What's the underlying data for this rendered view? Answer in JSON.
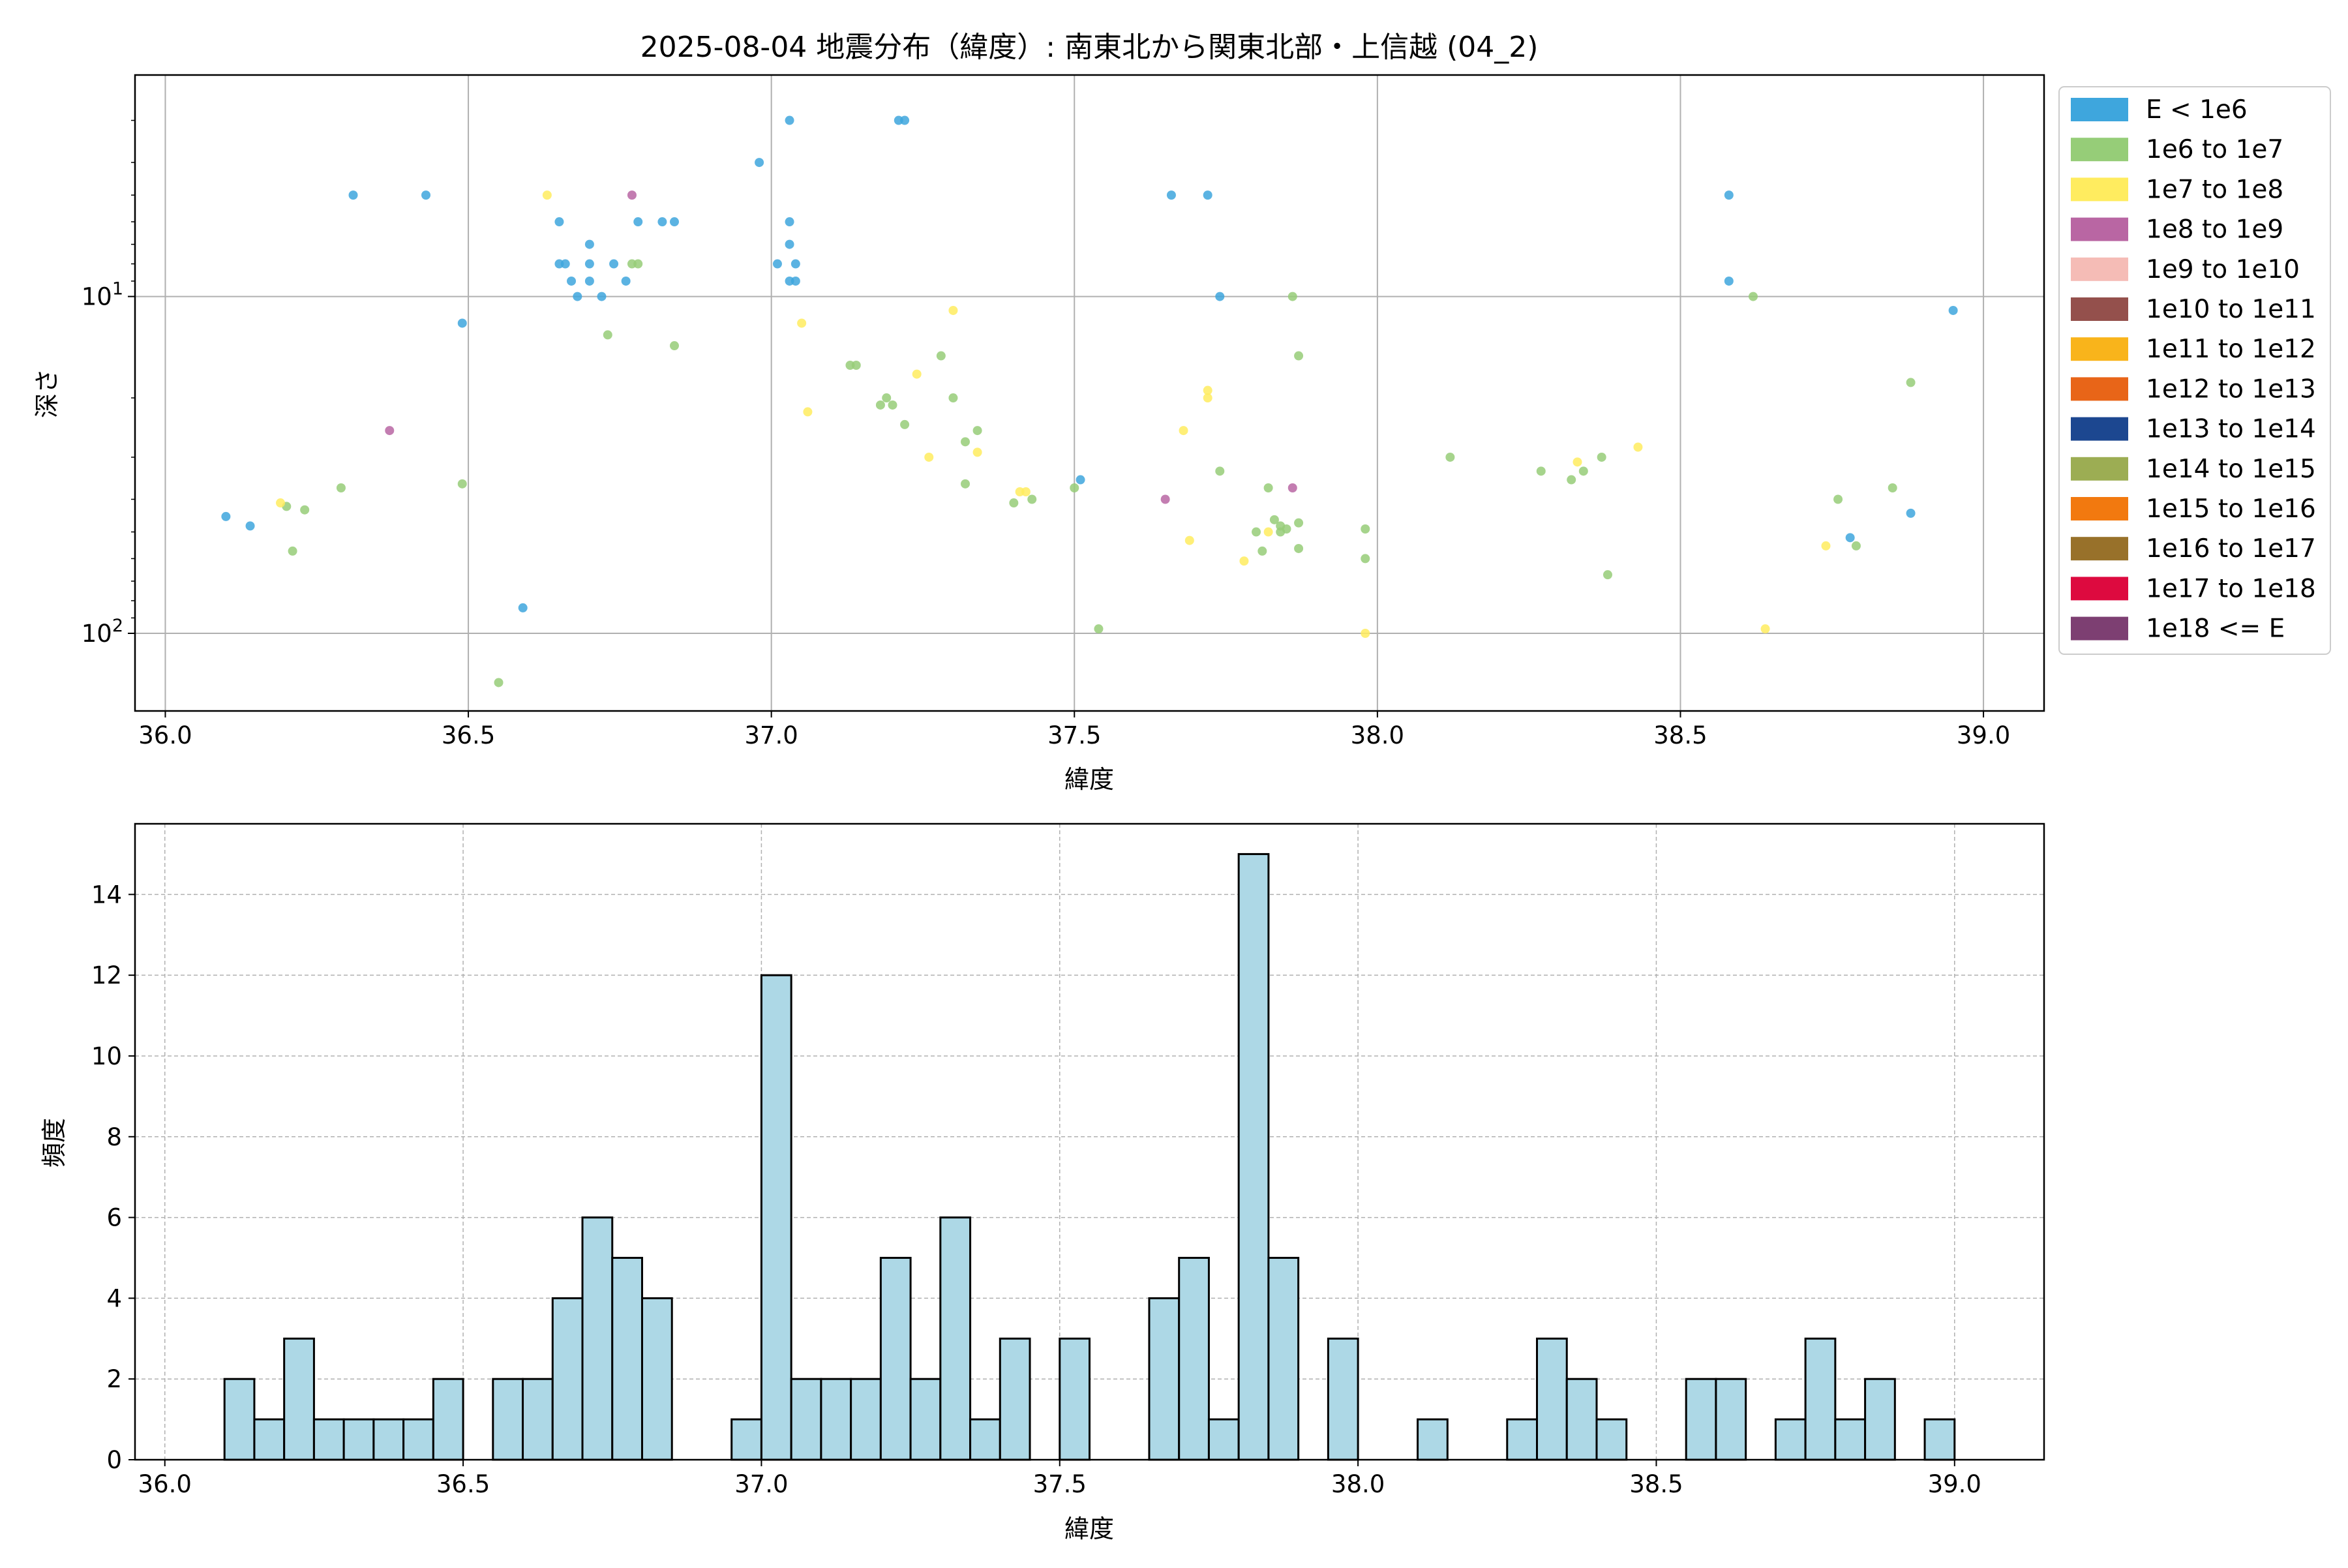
{
  "title": "2025-08-04 地震分布（緯度）: 南東北から関東北部・上信越 (04_2)",
  "chart_data": [
    {
      "type": "scatter",
      "xlabel": "緯度",
      "ylabel": "深さ",
      "xlim": [
        35.95,
        39.1
      ],
      "ylim_depth": [
        170,
        2.2
      ],
      "y_scale": "log",
      "y_inverted": true,
      "x_ticks": [
        "36.0",
        "36.5",
        "37.0",
        "37.5",
        "38.0",
        "38.5",
        "39.0"
      ],
      "y_ticks": [
        {
          "value": 10,
          "label": "10^1"
        },
        {
          "value": 100,
          "label": "10^2"
        }
      ],
      "grid": true,
      "legend_position": "outside-right",
      "legend": [
        {
          "label": "E < 1e6",
          "color": "#3ea6dd"
        },
        {
          "label": "1e6 to 1e7",
          "color": "#96cd78"
        },
        {
          "label": "1e7 to 1e8",
          "color": "#ffec5f"
        },
        {
          "label": "1e8 to 1e9",
          "color": "#b966a3"
        },
        {
          "label": "1e9 to 1e10",
          "color": "#f5bcb6"
        },
        {
          "label": "1e10 to 1e11",
          "color": "#94504c"
        },
        {
          "label": "1e11 to 1e12",
          "color": "#f9b41b"
        },
        {
          "label": "1e12 to 1e13",
          "color": "#e86518"
        },
        {
          "label": "1e13 to 1e14",
          "color": "#1c4790"
        },
        {
          "label": "1e14 to 1e15",
          "color": "#9cad53"
        },
        {
          "label": "1e15 to 1e16",
          "color": "#f2790f"
        },
        {
          "label": "1e16 to 1e17",
          "color": "#98712a"
        },
        {
          "label": "1e17 to 1e18",
          "color": "#dd0a3f"
        },
        {
          "label": "1e18 <= E",
          "color": "#7d3f72"
        }
      ],
      "points": [
        {
          "lat": 36.1,
          "depth": 45,
          "cls": 0
        },
        {
          "lat": 36.14,
          "depth": 48,
          "cls": 0
        },
        {
          "lat": 36.31,
          "depth": 5,
          "cls": 0
        },
        {
          "lat": 36.43,
          "depth": 5,
          "cls": 0
        },
        {
          "lat": 36.49,
          "depth": 12,
          "cls": 0
        },
        {
          "lat": 36.59,
          "depth": 84,
          "cls": 0
        },
        {
          "lat": 36.65,
          "depth": 6,
          "cls": 0
        },
        {
          "lat": 36.65,
          "depth": 8,
          "cls": 0
        },
        {
          "lat": 36.66,
          "depth": 8,
          "cls": 0
        },
        {
          "lat": 36.67,
          "depth": 9,
          "cls": 0
        },
        {
          "lat": 36.68,
          "depth": 10,
          "cls": 0
        },
        {
          "lat": 36.7,
          "depth": 7,
          "cls": 0
        },
        {
          "lat": 36.7,
          "depth": 8,
          "cls": 0
        },
        {
          "lat": 36.7,
          "depth": 9,
          "cls": 0
        },
        {
          "lat": 36.72,
          "depth": 10,
          "cls": 0
        },
        {
          "lat": 36.74,
          "depth": 8,
          "cls": 0
        },
        {
          "lat": 36.76,
          "depth": 9,
          "cls": 0
        },
        {
          "lat": 36.78,
          "depth": 6,
          "cls": 0
        },
        {
          "lat": 36.82,
          "depth": 6,
          "cls": 0
        },
        {
          "lat": 36.84,
          "depth": 6,
          "cls": 0
        },
        {
          "lat": 36.98,
          "depth": 4,
          "cls": 0
        },
        {
          "lat": 37.01,
          "depth": 8,
          "cls": 0
        },
        {
          "lat": 37.03,
          "depth": 3,
          "cls": 0
        },
        {
          "lat": 37.03,
          "depth": 6,
          "cls": 0
        },
        {
          "lat": 37.03,
          "depth": 7,
          "cls": 0
        },
        {
          "lat": 37.03,
          "depth": 9,
          "cls": 0
        },
        {
          "lat": 37.04,
          "depth": 8,
          "cls": 0
        },
        {
          "lat": 37.04,
          "depth": 9,
          "cls": 0
        },
        {
          "lat": 37.21,
          "depth": 3,
          "cls": 0
        },
        {
          "lat": 37.22,
          "depth": 3,
          "cls": 0
        },
        {
          "lat": 37.51,
          "depth": 35,
          "cls": 0
        },
        {
          "lat": 37.66,
          "depth": 5,
          "cls": 0
        },
        {
          "lat": 37.72,
          "depth": 5,
          "cls": 0
        },
        {
          "lat": 37.74,
          "depth": 10,
          "cls": 0
        },
        {
          "lat": 38.58,
          "depth": 5,
          "cls": 0
        },
        {
          "lat": 38.58,
          "depth": 9,
          "cls": 0
        },
        {
          "lat": 38.78,
          "depth": 52,
          "cls": 0
        },
        {
          "lat": 38.88,
          "depth": 44,
          "cls": 0
        },
        {
          "lat": 38.95,
          "depth": 11,
          "cls": 0
        },
        {
          "lat": 36.2,
          "depth": 42,
          "cls": 1
        },
        {
          "lat": 36.21,
          "depth": 57,
          "cls": 1
        },
        {
          "lat": 36.23,
          "depth": 43,
          "cls": 1
        },
        {
          "lat": 36.29,
          "depth": 37,
          "cls": 1
        },
        {
          "lat": 36.49,
          "depth": 36,
          "cls": 1
        },
        {
          "lat": 36.55,
          "depth": 140,
          "cls": 1
        },
        {
          "lat": 36.73,
          "depth": 13,
          "cls": 1
        },
        {
          "lat": 36.77,
          "depth": 8,
          "cls": 1
        },
        {
          "lat": 36.78,
          "depth": 8,
          "cls": 1
        },
        {
          "lat": 36.84,
          "depth": 14,
          "cls": 1
        },
        {
          "lat": 37.13,
          "depth": 16,
          "cls": 1
        },
        {
          "lat": 37.14,
          "depth": 16,
          "cls": 1
        },
        {
          "lat": 37.18,
          "depth": 21,
          "cls": 1
        },
        {
          "lat": 37.19,
          "depth": 20,
          "cls": 1
        },
        {
          "lat": 37.2,
          "depth": 21,
          "cls": 1
        },
        {
          "lat": 37.22,
          "depth": 24,
          "cls": 1
        },
        {
          "lat": 37.28,
          "depth": 15,
          "cls": 1
        },
        {
          "lat": 37.3,
          "depth": 20,
          "cls": 1
        },
        {
          "lat": 37.32,
          "depth": 27,
          "cls": 1
        },
        {
          "lat": 37.32,
          "depth": 36,
          "cls": 1
        },
        {
          "lat": 37.34,
          "depth": 25,
          "cls": 1
        },
        {
          "lat": 37.4,
          "depth": 41,
          "cls": 1
        },
        {
          "lat": 37.43,
          "depth": 40,
          "cls": 1
        },
        {
          "lat": 37.5,
          "depth": 37,
          "cls": 1
        },
        {
          "lat": 37.54,
          "depth": 97,
          "cls": 1
        },
        {
          "lat": 37.74,
          "depth": 33,
          "cls": 1
        },
        {
          "lat": 37.8,
          "depth": 50,
          "cls": 1
        },
        {
          "lat": 37.81,
          "depth": 57,
          "cls": 1
        },
        {
          "lat": 37.82,
          "depth": 37,
          "cls": 1
        },
        {
          "lat": 37.83,
          "depth": 46,
          "cls": 1
        },
        {
          "lat": 37.84,
          "depth": 50,
          "cls": 1
        },
        {
          "lat": 37.84,
          "depth": 48,
          "cls": 1
        },
        {
          "lat": 37.85,
          "depth": 49,
          "cls": 1
        },
        {
          "lat": 37.86,
          "depth": 10,
          "cls": 1
        },
        {
          "lat": 37.87,
          "depth": 15,
          "cls": 1
        },
        {
          "lat": 37.87,
          "depth": 47,
          "cls": 1
        },
        {
          "lat": 37.87,
          "depth": 56,
          "cls": 1
        },
        {
          "lat": 37.98,
          "depth": 49,
          "cls": 1
        },
        {
          "lat": 37.98,
          "depth": 60,
          "cls": 1
        },
        {
          "lat": 38.12,
          "depth": 30,
          "cls": 1
        },
        {
          "lat": 38.27,
          "depth": 33,
          "cls": 1
        },
        {
          "lat": 38.32,
          "depth": 35,
          "cls": 1
        },
        {
          "lat": 38.34,
          "depth": 33,
          "cls": 1
        },
        {
          "lat": 38.37,
          "depth": 30,
          "cls": 1
        },
        {
          "lat": 38.38,
          "depth": 67,
          "cls": 1
        },
        {
          "lat": 38.62,
          "depth": 10,
          "cls": 1
        },
        {
          "lat": 38.76,
          "depth": 40,
          "cls": 1
        },
        {
          "lat": 38.79,
          "depth": 55,
          "cls": 1
        },
        {
          "lat": 38.85,
          "depth": 37,
          "cls": 1
        },
        {
          "lat": 38.88,
          "depth": 18,
          "cls": 1
        },
        {
          "lat": 36.19,
          "depth": 41,
          "cls": 2
        },
        {
          "lat": 36.63,
          "depth": 5,
          "cls": 2
        },
        {
          "lat": 37.05,
          "depth": 12,
          "cls": 2
        },
        {
          "lat": 37.06,
          "depth": 22,
          "cls": 2
        },
        {
          "lat": 37.24,
          "depth": 17,
          "cls": 2
        },
        {
          "lat": 37.26,
          "depth": 30,
          "cls": 2
        },
        {
          "lat": 37.3,
          "depth": 11,
          "cls": 2
        },
        {
          "lat": 37.34,
          "depth": 29,
          "cls": 2
        },
        {
          "lat": 37.41,
          "depth": 38,
          "cls": 2
        },
        {
          "lat": 37.42,
          "depth": 38,
          "cls": 2
        },
        {
          "lat": 37.68,
          "depth": 25,
          "cls": 2
        },
        {
          "lat": 37.69,
          "depth": 53,
          "cls": 2
        },
        {
          "lat": 37.72,
          "depth": 19,
          "cls": 2
        },
        {
          "lat": 37.72,
          "depth": 20,
          "cls": 2
        },
        {
          "lat": 37.78,
          "depth": 61,
          "cls": 2
        },
        {
          "lat": 37.82,
          "depth": 50,
          "cls": 2
        },
        {
          "lat": 37.98,
          "depth": 100,
          "cls": 2
        },
        {
          "lat": 38.33,
          "depth": 31,
          "cls": 2
        },
        {
          "lat": 38.43,
          "depth": 28,
          "cls": 2
        },
        {
          "lat": 38.64,
          "depth": 97,
          "cls": 2
        },
        {
          "lat": 38.74,
          "depth": 55,
          "cls": 2
        },
        {
          "lat": 36.37,
          "depth": 25,
          "cls": 3
        },
        {
          "lat": 36.77,
          "depth": 5,
          "cls": 3
        },
        {
          "lat": 37.65,
          "depth": 40,
          "cls": 3
        },
        {
          "lat": 37.86,
          "depth": 37,
          "cls": 3
        }
      ]
    },
    {
      "type": "bar",
      "xlabel": "緯度",
      "ylabel": "頻度",
      "xlim": [
        35.95,
        39.15
      ],
      "ylim": [
        0,
        15.75
      ],
      "bin_width": 0.05,
      "x_ticks": [
        "36.0",
        "36.5",
        "37.0",
        "37.5",
        "38.0",
        "38.5",
        "39.0"
      ],
      "y_ticks": [
        "0",
        "2",
        "4",
        "6",
        "8",
        "10",
        "12",
        "14"
      ],
      "grid": true,
      "bar_color": "#add8e6",
      "bins": [
        {
          "x": 36.1,
          "count": 2
        },
        {
          "x": 36.15,
          "count": 1
        },
        {
          "x": 36.2,
          "count": 3
        },
        {
          "x": 36.25,
          "count": 1
        },
        {
          "x": 36.3,
          "count": 1
        },
        {
          "x": 36.35,
          "count": 1
        },
        {
          "x": 36.4,
          "count": 1
        },
        {
          "x": 36.45,
          "count": 2
        },
        {
          "x": 36.55,
          "count": 2
        },
        {
          "x": 36.6,
          "count": 2
        },
        {
          "x": 36.65,
          "count": 4
        },
        {
          "x": 36.7,
          "count": 6
        },
        {
          "x": 36.75,
          "count": 5
        },
        {
          "x": 36.8,
          "count": 4
        },
        {
          "x": 36.95,
          "count": 1
        },
        {
          "x": 37.0,
          "count": 12
        },
        {
          "x": 37.05,
          "count": 2
        },
        {
          "x": 37.1,
          "count": 2
        },
        {
          "x": 37.15,
          "count": 2
        },
        {
          "x": 37.2,
          "count": 5
        },
        {
          "x": 37.25,
          "count": 2
        },
        {
          "x": 37.3,
          "count": 6
        },
        {
          "x": 37.35,
          "count": 1
        },
        {
          "x": 37.4,
          "count": 3
        },
        {
          "x": 37.5,
          "count": 3
        },
        {
          "x": 37.65,
          "count": 4
        },
        {
          "x": 37.7,
          "count": 5
        },
        {
          "x": 37.75,
          "count": 1
        },
        {
          "x": 37.8,
          "count": 15
        },
        {
          "x": 37.85,
          "count": 5
        },
        {
          "x": 37.95,
          "count": 3
        },
        {
          "x": 38.1,
          "count": 1
        },
        {
          "x": 38.25,
          "count": 1
        },
        {
          "x": 38.3,
          "count": 3
        },
        {
          "x": 38.35,
          "count": 2
        },
        {
          "x": 38.4,
          "count": 1
        },
        {
          "x": 38.55,
          "count": 2
        },
        {
          "x": 38.6,
          "count": 2
        },
        {
          "x": 38.7,
          "count": 1
        },
        {
          "x": 38.75,
          "count": 3
        },
        {
          "x": 38.8,
          "count": 1
        },
        {
          "x": 38.85,
          "count": 2
        },
        {
          "x": 38.95,
          "count": 1
        }
      ]
    }
  ]
}
